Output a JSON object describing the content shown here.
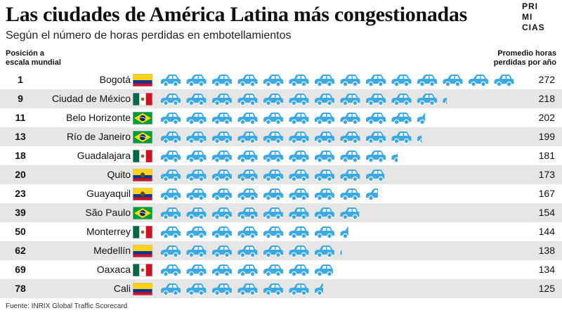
{
  "title": "Las ciudades de América Latina más congestionadas",
  "subtitle": "Según el número de horas perdidas en embotellamientos",
  "logo": [
    "PRI",
    "MI",
    "CIAS"
  ],
  "header_left": [
    "Posición a",
    "escala mundial"
  ],
  "header_right": [
    "Promedio horas",
    "perdidas por año"
  ],
  "source": "Fuente: INRIX Global Traffic Scorecard",
  "colors": {
    "car": "#3aa9e4",
    "shade": "#e6e6e6"
  },
  "chart_data": {
    "type": "bar",
    "xlabel": "Promedio horas perdidas por año",
    "categories": [
      "Bogotá",
      "Ciudad de México",
      "Belo Horizonte",
      "Río de Janeiro",
      "Guadalajara",
      "Quito",
      "Guayaquil",
      "São Paulo",
      "Monterrey",
      "Medellín",
      "Oaxaca",
      "Cali"
    ],
    "ranks": [
      "1",
      "9",
      "11",
      "13",
      "18",
      "20",
      "23",
      "39",
      "50",
      "62",
      "69",
      "78"
    ],
    "flags": [
      "colombia",
      "mexico",
      "brazil",
      "brazil",
      "mexico",
      "ecuador",
      "ecuador",
      "brazil",
      "mexico",
      "colombia",
      "mexico",
      "colombia"
    ],
    "values": [
      272,
      218,
      202,
      199,
      181,
      173,
      167,
      154,
      144,
      138,
      134,
      125
    ],
    "xlim": [
      0,
      272
    ]
  }
}
